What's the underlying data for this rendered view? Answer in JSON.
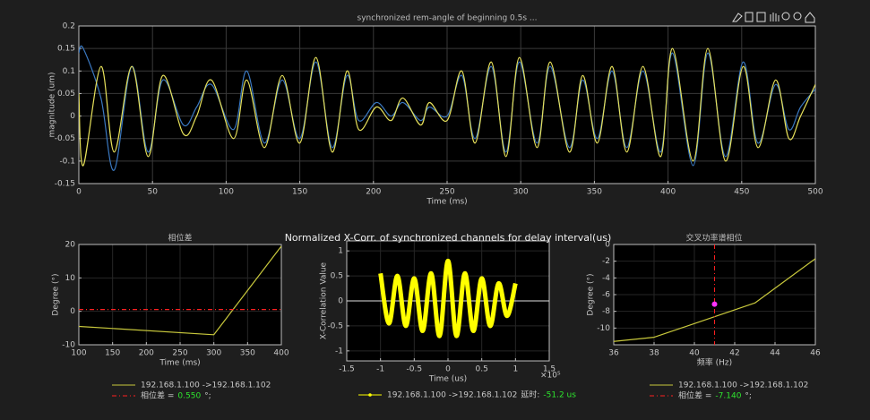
{
  "chart_data": [
    {
      "type": "line",
      "title": "synchronized rem-angle of beginning 0.5s ...",
      "xlabel": "Time (ms)",
      "ylabel": "magnitude (um)",
      "smooth": true,
      "grid": true,
      "xlim": [
        0,
        500
      ],
      "ylim": [
        -0.15,
        0.2
      ],
      "xticks": [
        0,
        50,
        100,
        150,
        200,
        250,
        300,
        350,
        400,
        450,
        500
      ],
      "yticks": [
        -0.15,
        -0.1,
        -0.05,
        0,
        0.05,
        0.1,
        0.15,
        0.2
      ],
      "x": [
        0,
        3,
        15,
        24,
        36,
        47,
        57,
        71,
        80,
        90,
        105,
        114,
        126,
        138,
        150,
        161,
        172,
        182,
        190,
        202,
        212,
        220,
        232,
        238,
        250,
        260,
        269,
        280,
        290,
        299,
        311,
        320,
        333,
        342,
        352,
        362,
        372,
        383,
        395,
        403,
        417,
        427,
        439,
        451,
        461,
        473,
        482,
        490,
        500
      ],
      "series": [
        {
          "color": "#3a78c0",
          "values": [
            0.14,
            0.15,
            0.04,
            -0.12,
            0.11,
            -0.08,
            0.08,
            -0.02,
            0.02,
            0.07,
            -0.03,
            0.1,
            -0.06,
            0.08,
            -0.05,
            0.12,
            -0.07,
            0.09,
            -0.01,
            0.03,
            0,
            0.03,
            -0.01,
            0.02,
            0,
            0.09,
            -0.05,
            0.11,
            -0.08,
            0.12,
            -0.06,
            0.11,
            -0.07,
            0.08,
            -0.05,
            0.1,
            -0.07,
            0.1,
            -0.08,
            0.14,
            -0.11,
            0.14,
            -0.09,
            0.12,
            -0.06,
            0.07,
            -0.03,
            0.02,
            0.06
          ]
        },
        {
          "color": "#e6e05a",
          "values": [
            0.05,
            -0.11,
            0.11,
            -0.08,
            0.11,
            -0.09,
            0.09,
            -0.04,
            0,
            0.08,
            -0.05,
            0.08,
            -0.07,
            0.09,
            -0.06,
            0.13,
            -0.08,
            0.1,
            -0.03,
            0.02,
            -0.01,
            0.04,
            -0.02,
            0.03,
            -0.01,
            0.1,
            -0.06,
            0.12,
            -0.09,
            0.13,
            -0.07,
            0.12,
            -0.08,
            0.09,
            -0.06,
            0.11,
            -0.08,
            0.11,
            -0.09,
            0.15,
            -0.1,
            0.15,
            -0.1,
            0.11,
            -0.07,
            0.08,
            -0.05,
            0,
            0.07
          ]
        }
      ]
    },
    {
      "type": "line",
      "title": "相位差",
      "xlabel": "Time (ms)",
      "ylabel": "Degree (°)",
      "grid": true,
      "legend": true,
      "xlim": [
        100,
        400
      ],
      "ylim": [
        -10,
        20
      ],
      "xticks": [
        100,
        150,
        200,
        250,
        300,
        350,
        400
      ],
      "yticks": [
        -10,
        0,
        10,
        20
      ],
      "x": [
        100,
        300,
        400
      ],
      "series": [
        {
          "name": "192.168.1.100 ->192.168.1.102",
          "color": "#c8c83c",
          "values": [
            -4.5,
            -7,
            19.5
          ]
        }
      ],
      "reference_line": {
        "name": "相位差 =",
        "orientation": "horizontal",
        "color": "#ff2020",
        "value": 0.55,
        "value_label": "0.550",
        "unit": "°;"
      }
    },
    {
      "type": "line",
      "title": "Normalized X-Corr. of synchronized channels for delay interval(us)",
      "xlabel": "Time (us)",
      "ylabel": "X-Correlation Value",
      "smooth": true,
      "grid": true,
      "legend": true,
      "x_exponent_label": "×10⁵",
      "xlim": [
        -150000,
        150000
      ],
      "ylim": [
        -1.2,
        1.2
      ],
      "xticks": [
        {
          "value": -150000,
          "label": "-1.5"
        },
        {
          "value": -100000,
          "label": "-1"
        },
        {
          "value": -50000,
          "label": "-0.5"
        },
        0,
        {
          "value": 50000,
          "label": "0.5"
        },
        {
          "value": 100000,
          "label": "1"
        },
        {
          "value": 150000,
          "label": "1.5"
        }
      ],
      "yticks": [
        -1,
        -0.5,
        0,
        0.5,
        1
      ],
      "x": [
        -100000,
        -87500,
        -75000,
        -62500,
        -50000,
        -37500,
        -25000,
        -12500,
        0,
        12500,
        25000,
        37500,
        50000,
        62500,
        75000,
        87500,
        100000
      ],
      "series": [
        {
          "name": "192.168.1.100 ->192.168.1.102",
          "color": "#ffff00",
          "values": [
            0.55,
            -0.45,
            0.5,
            -0.5,
            0.45,
            -0.6,
            0.55,
            -0.7,
            0.8,
            -0.7,
            0.55,
            -0.6,
            0.45,
            -0.5,
            0.35,
            -0.3,
            0.35
          ],
          "delay_label": "延时:",
          "delay": "-51.2 us"
        }
      ]
    },
    {
      "type": "line",
      "title": "交叉功率谱相位",
      "xlabel": "频率 (Hz)",
      "ylabel": "Degree (°)",
      "grid": true,
      "legend": true,
      "xlim": [
        36,
        46
      ],
      "ylim": [
        -12,
        0
      ],
      "xticks": [
        36,
        38,
        40,
        42,
        44,
        46
      ],
      "yticks": [
        -10,
        -8,
        -6,
        -4,
        -2,
        0
      ],
      "x": [
        36,
        38,
        43,
        46
      ],
      "series": [
        {
          "name": "192.168.1.100 ->192.168.1.102",
          "color": "#c8c83c",
          "values": [
            -11.6,
            -11.1,
            -7,
            -1.7
          ]
        }
      ],
      "reference_line": {
        "name": "相位差 =",
        "orientation": "vertical",
        "color": "#ff2020",
        "value": 41,
        "unit": "°;"
      },
      "marker": {
        "color": "#ff33ff",
        "x": 41,
        "value": -7.14,
        "value_label": "-7.140"
      }
    }
  ]
}
